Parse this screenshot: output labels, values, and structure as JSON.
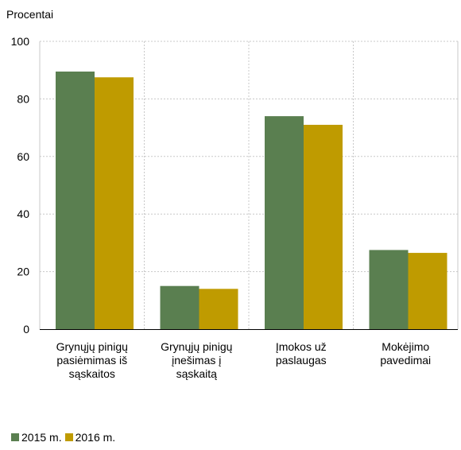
{
  "chart_data": {
    "type": "bar",
    "ylabel": "Procentai",
    "ylim": [
      0,
      100
    ],
    "yticks": [
      0,
      20,
      40,
      60,
      80,
      100
    ],
    "grid": true,
    "legend_position": "bottom-left",
    "categories": [
      [
        "Grynųjų pinigų",
        "pasiėmimas iš",
        "sąskaitos"
      ],
      [
        "Grynųjų pinigų",
        "įnešimas į",
        "sąskaitą"
      ],
      [
        "Įmokos už",
        "paslaugas"
      ],
      [
        "Mokėjimo",
        "pavedimai"
      ]
    ],
    "series": [
      {
        "name": "2015 m.",
        "color": "#5a7f50",
        "values": [
          89.5,
          15,
          74,
          27.5
        ]
      },
      {
        "name": "2016 m.",
        "color": "#bf9b00",
        "values": [
          87.5,
          14,
          71,
          26.5
        ]
      }
    ]
  }
}
